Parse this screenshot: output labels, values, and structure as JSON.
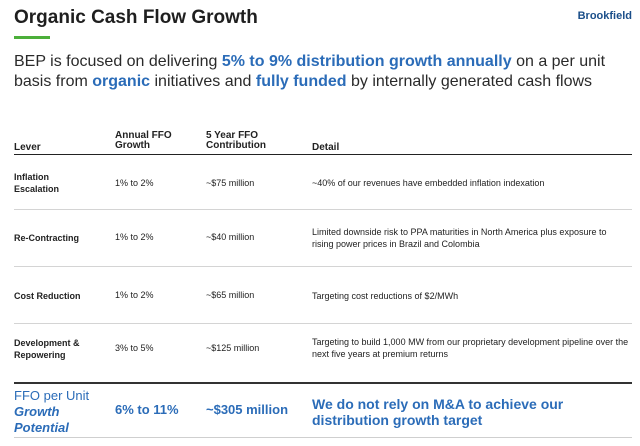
{
  "header": {
    "title": "Organic Cash Flow Growth",
    "brand": "Brookfield",
    "accent_color": "#4caf3a"
  },
  "intro": {
    "p1": "BEP is focused on delivering ",
    "h1": "5% to 9% distribution growth annually",
    "p2": " on a per unit basis from ",
    "h2": "organic",
    "p3": " initiatives and ",
    "h3": "fully funded",
    "p4": " by internally generated cash flows",
    "highlight_color": "#2b6cb8"
  },
  "table": {
    "headers": {
      "lever": "Lever",
      "growth": "Annual FFO Growth",
      "contribution": "5 Year FFO Contribution",
      "detail": "Detail"
    },
    "rows": [
      {
        "lever": "Inflation Escalation",
        "growth": "1% to 2%",
        "contribution": "~$75 million",
        "detail": "~40% of our revenues have embedded inflation indexation"
      },
      {
        "lever": "Re-Contracting",
        "growth": "1% to 2%",
        "contribution": "~$40 million",
        "detail": "Limited downside risk to PPA maturities in North America plus exposure to rising power prices in Brazil and Colombia"
      },
      {
        "lever": "Cost Reduction",
        "growth": "1% to 2%",
        "contribution": "~$65 million",
        "detail": "Targeting cost reductions of $2/MWh"
      },
      {
        "lever": "Development & Repowering",
        "growth": "3% to 5%",
        "contribution": "~$125 million",
        "detail": "Targeting to build 1,000 MW from our proprietary development pipeline over the next five years at premium returns"
      }
    ],
    "total": {
      "label_line1": "FFO per Unit",
      "label_line2": "Growth",
      "label_line3": "Potential",
      "growth": "6% to 11%",
      "contribution": "~$305 million",
      "detail": "We do not rely on M&A to achieve our distribution growth target"
    }
  }
}
